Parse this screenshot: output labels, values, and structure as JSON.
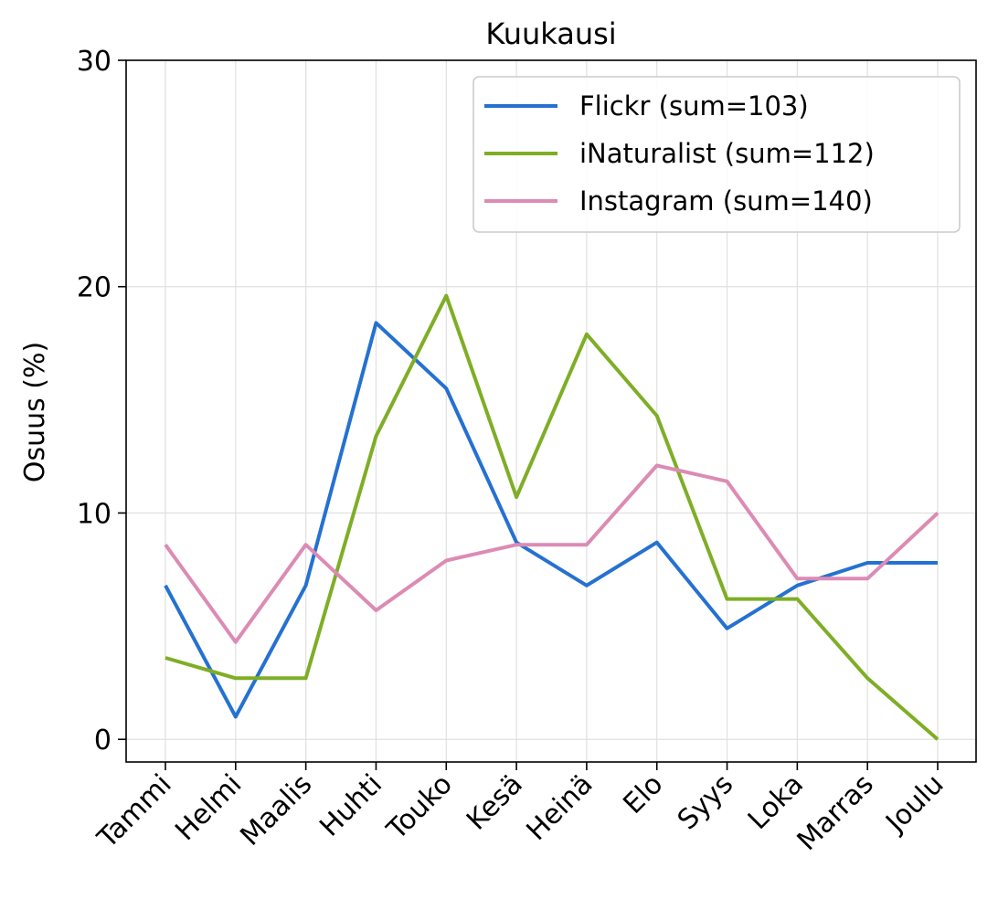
{
  "chart_data": {
    "type": "line",
    "title": "Kuukausi",
    "xlabel": "",
    "ylabel": "Osuus (%)",
    "categories": [
      "Tammi",
      "Helmi",
      "Maalis",
      "Huhti",
      "Touko",
      "Kesä",
      "Heinä",
      "Elo",
      "Syys",
      "Loka",
      "Marras",
      "Joulu"
    ],
    "ylim": [
      -1,
      30
    ],
    "yticks": [
      0,
      10,
      20,
      30
    ],
    "grid": true,
    "legend_position": "top-right",
    "series": [
      {
        "name": "Flickr (sum=103)",
        "color": "#2571d1",
        "values": [
          6.8,
          1.0,
          6.8,
          18.4,
          15.5,
          8.7,
          6.8,
          8.7,
          4.9,
          6.8,
          7.8,
          7.8
        ]
      },
      {
        "name": "iNaturalist (sum=112)",
        "color": "#7eae26",
        "values": [
          3.6,
          2.7,
          2.7,
          13.4,
          19.6,
          10.7,
          17.9,
          14.3,
          6.2,
          6.2,
          2.7,
          0.0
        ]
      },
      {
        "name": "Instagram (sum=140)",
        "color": "#dc8bb5",
        "values": [
          8.6,
          4.3,
          8.6,
          5.7,
          7.9,
          8.6,
          8.6,
          12.1,
          11.4,
          7.1,
          7.1,
          10.0
        ]
      }
    ]
  }
}
